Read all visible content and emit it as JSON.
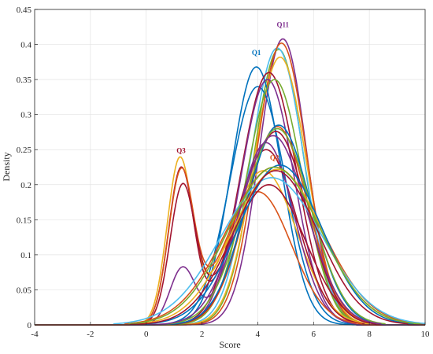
{
  "chart_data": {
    "type": "line",
    "xlabel": "Score",
    "ylabel": "Density",
    "xlim": [
      -4,
      10
    ],
    "ylim": [
      0,
      0.45
    ],
    "xticks": [
      -4,
      -2,
      0,
      2,
      4,
      6,
      8,
      10
    ],
    "yticks": [
      0,
      0.05,
      0.1,
      0.15,
      0.2,
      0.25,
      0.3,
      0.35,
      0.4,
      0.45
    ],
    "xtick_labels": [
      "-4",
      "-2",
      "0",
      "2",
      "4",
      "6",
      "8",
      "10"
    ],
    "ytick_labels": [
      "0",
      "0.05",
      "0.1",
      "0.15",
      "0.2",
      "0.25",
      "0.3",
      "0.35",
      "0.4",
      "0.45"
    ],
    "grid": true,
    "annotations": [
      {
        "text": "Q11",
        "x": 4.9,
        "y": 0.425,
        "color": "#7E2F8E"
      },
      {
        "text": "Q1",
        "x": 3.95,
        "y": 0.385,
        "color": "#0072BD"
      },
      {
        "text": "Q3",
        "x": 1.25,
        "y": 0.245,
        "color": "#A2142F"
      },
      {
        "text": "Q2",
        "x": 4.6,
        "y": 0.235,
        "color": "#D95319"
      }
    ],
    "series": [
      {
        "color": "#7E2F8E",
        "components": [
          [
            4.9,
            0.85,
            0.408
          ]
        ]
      },
      {
        "color": "#77AC30",
        "components": [
          [
            4.75,
            0.9,
            0.393
          ]
        ]
      },
      {
        "color": "#4DBEEE",
        "components": [
          [
            4.7,
            0.95,
            0.395
          ]
        ]
      },
      {
        "color": "#EDB120",
        "components": [
          [
            4.8,
            0.95,
            0.382
          ]
        ]
      },
      {
        "color": "#D95319",
        "components": [
          [
            4.85,
            0.9,
            0.402
          ]
        ]
      },
      {
        "color": "#0072BD",
        "components": [
          [
            3.95,
            0.9,
            0.368
          ]
        ]
      },
      {
        "color": "#0072BD",
        "components": [
          [
            4.0,
            1.0,
            0.34
          ]
        ]
      },
      {
        "color": "#A2142F",
        "components": [
          [
            4.4,
            1.0,
            0.36
          ]
        ]
      },
      {
        "color": "#7E2F8E",
        "components": [
          [
            4.35,
            0.95,
            0.35
          ]
        ]
      },
      {
        "color": "#77AC30",
        "components": [
          [
            4.6,
            1.0,
            0.35
          ]
        ]
      },
      {
        "color": "#EDB120",
        "components": [
          [
            1.2,
            0.45,
            0.23
          ],
          [
            4.2,
            1.2,
            0.22
          ]
        ]
      },
      {
        "color": "#A2142F",
        "components": [
          [
            1.25,
            0.45,
            0.22
          ],
          [
            4.3,
            1.1,
            0.25
          ]
        ]
      },
      {
        "color": "#7E2F8E",
        "components": [
          [
            1.3,
            0.45,
            0.08
          ],
          [
            4.3,
            1.0,
            0.26
          ]
        ]
      },
      {
        "color": "#D95319",
        "components": [
          [
            1.25,
            0.45,
            0.21
          ],
          [
            4.0,
            1.2,
            0.19
          ]
        ]
      },
      {
        "color": "#A2142F",
        "components": [
          [
            1.3,
            0.45,
            0.19
          ],
          [
            4.4,
            1.3,
            0.2
          ]
        ]
      },
      {
        "color": "#D95319",
        "components": [
          [
            4.7,
            1.1,
            0.283
          ]
        ]
      },
      {
        "color": "#A2142F",
        "components": [
          [
            4.65,
            1.1,
            0.276
          ]
        ]
      },
      {
        "color": "#0072BD",
        "components": [
          [
            4.75,
            1.15,
            0.285
          ]
        ]
      },
      {
        "color": "#77AC30",
        "components": [
          [
            4.7,
            1.2,
            0.28
          ]
        ]
      },
      {
        "color": "#7E2F8E",
        "components": [
          [
            4.55,
            1.2,
            0.27
          ]
        ]
      },
      {
        "color": "#D95319",
        "components": [
          [
            4.6,
            1.7,
            0.225
          ]
        ]
      },
      {
        "color": "#4DBEEE",
        "components": [
          [
            4.5,
            1.8,
            0.21
          ]
        ]
      },
      {
        "color": "#EDB120",
        "components": [
          [
            4.7,
            1.6,
            0.222
          ]
        ]
      },
      {
        "color": "#0072BD",
        "components": [
          [
            4.8,
            1.5,
            0.228
          ]
        ]
      },
      {
        "color": "#77AC30",
        "components": [
          [
            4.6,
            1.65,
            0.225
          ]
        ]
      },
      {
        "color": "#A2142F",
        "components": [
          [
            4.65,
            1.5,
            0.22
          ]
        ]
      }
    ]
  }
}
